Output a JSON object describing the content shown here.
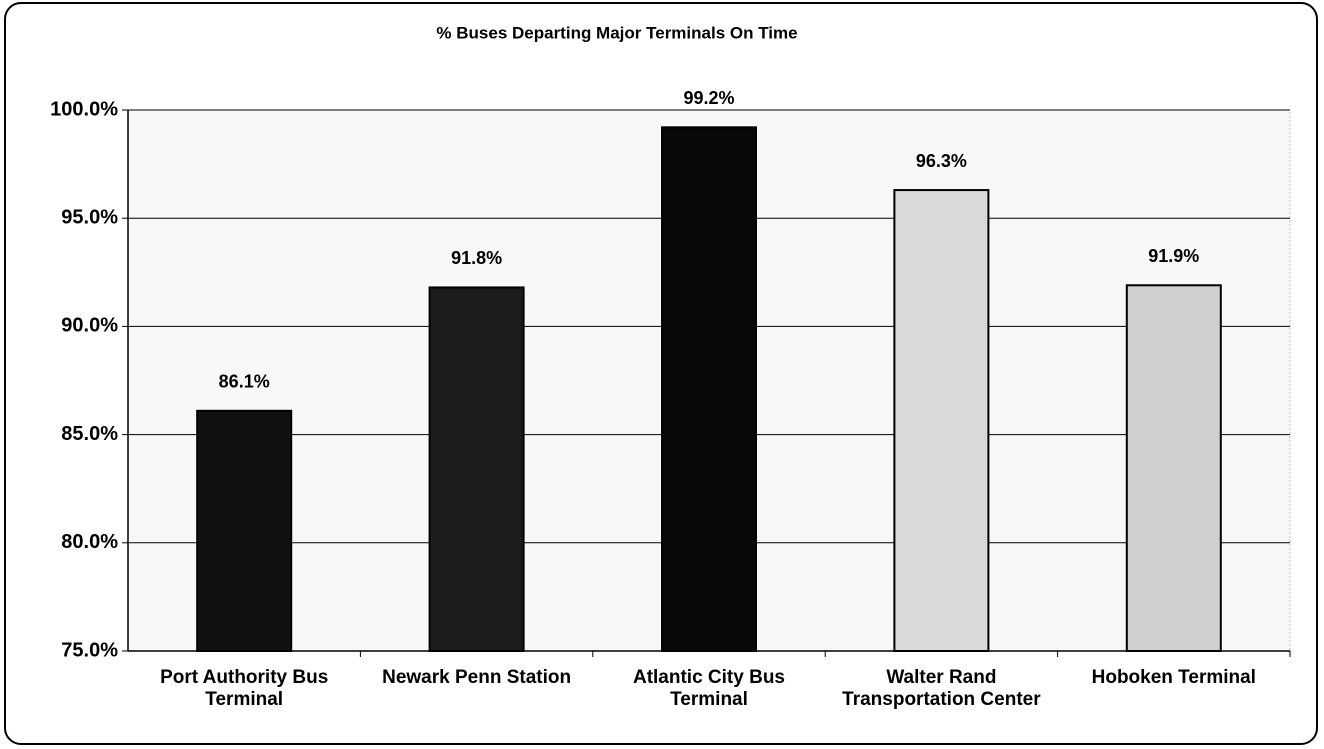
{
  "chart_data": {
    "type": "bar",
    "title": "% Buses Departing Major Terminals On Time",
    "categories": [
      "Port Authority Bus Terminal",
      "Newark Penn Station",
      "Atlantic City Bus Terminal",
      "Walter Rand Transportation Center",
      "Hoboken Terminal"
    ],
    "values": [
      86.1,
      91.8,
      99.2,
      96.3,
      91.9
    ],
    "value_labels": [
      "86.1%",
      "91.8%",
      "99.2%",
      "96.3%",
      "91.9%"
    ],
    "colors": [
      "#111111",
      "#1c1c1c",
      "#080808",
      "#d9d9d9",
      "#cfcfcf"
    ],
    "ylim": [
      75,
      100
    ],
    "yticks": [
      {
        "value": 75,
        "label": "75.0%"
      },
      {
        "value": 80,
        "label": "80.0%"
      },
      {
        "value": 85,
        "label": "85.0%"
      },
      {
        "value": 90,
        "label": "90.0%"
      },
      {
        "value": 95,
        "label": "95.0%"
      },
      {
        "value": 100,
        "label": "100.0%"
      }
    ],
    "grid": true
  }
}
